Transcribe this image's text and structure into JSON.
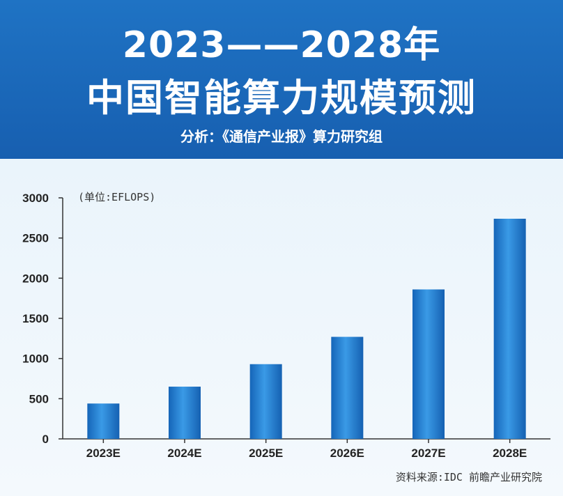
{
  "header": {
    "title_line1": "2023——2028年",
    "title_line2": "中国智能算力规模预测",
    "subtitle": "分析：《通信产业报》算力研究组"
  },
  "unit_label": "(单位:EFLOPS)",
  "source": "资料来源:IDC 前瞻产业研究院",
  "colors": {
    "header_bg": "#1a67b8",
    "bar": "#1e7bd0",
    "axis": "#333333"
  },
  "chart_data": {
    "type": "bar",
    "title": "中国智能算力规模预测",
    "ylabel": "(单位:EFLOPS)",
    "categories": [
      "2023E",
      "2024E",
      "2025E",
      "2026E",
      "2027E",
      "2028E"
    ],
    "values": [
      440,
      650,
      930,
      1270,
      1860,
      2740
    ],
    "ylim": [
      0,
      3000
    ],
    "yticks": [
      0,
      500,
      1000,
      1500,
      2000,
      2500,
      3000
    ],
    "grid": false
  }
}
